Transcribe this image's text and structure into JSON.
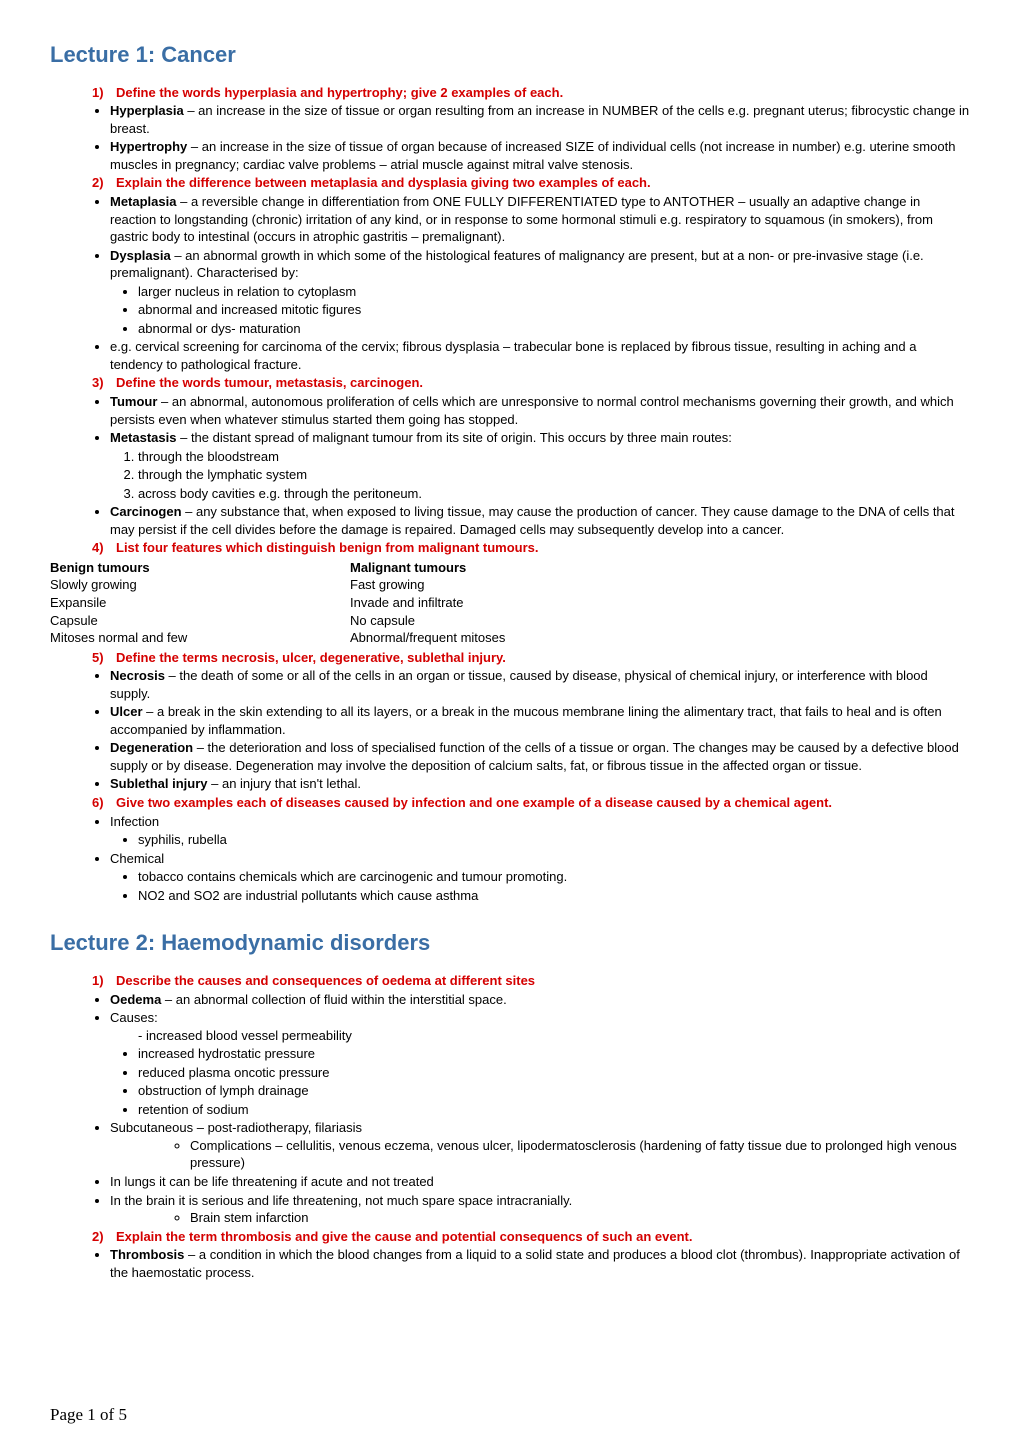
{
  "lecture1": {
    "title": "Lecture 1: Cancer",
    "q1": {
      "num": "1)",
      "text": "Define the words hyperplasia and hypertrophy; give 2 examples of each.",
      "items": [
        {
          "term": "Hyperplasia",
          "body": " – an increase in the size of tissue or organ resulting from an increase in NUMBER of the cells e.g. pregnant uterus; fibrocystic change in breast."
        },
        {
          "term": "Hypertrophy",
          "body": " – an increase in the size of tissue of organ because of increased SIZE of individual cells (not increase in number) e.g. uterine smooth muscles in pregnancy; cardiac valve problems – atrial muscle against mitral valve stenosis."
        }
      ]
    },
    "q2": {
      "num": "2)",
      "text": "Explain the difference between metaplasia and dysplasia giving two examples of each.",
      "meta": {
        "term": "Metaplasia",
        "body": " – a reversible change in differentiation from ONE FULLY DIFFERENTIATED type to ANTOTHER – usually an adaptive change in reaction to longstanding (chronic) irritation of any kind, or in response to some hormonal stimuli e.g. respiratory to squamous (in smokers), from gastric body to intestinal (occurs in atrophic gastritis – premalignant)."
      },
      "dys": {
        "term": "Dysplasia",
        "body": " – an abnormal growth in which some of the histological features of malignancy are present, but at a non- or pre-invasive stage (i.e. premalignant). Characterised by:"
      },
      "dys_sub": [
        "larger nucleus in relation to cytoplasm",
        "abnormal and increased mitotic figures",
        "abnormal or dys- maturation"
      ],
      "eg": "e.g. cervical screening for carcinoma of the cervix; fibrous dysplasia – trabecular bone is replaced by fibrous tissue, resulting in aching and a tendency to pathological fracture."
    },
    "q3": {
      "num": "3)",
      "text": "Define the words tumour, metastasis, carcinogen.",
      "tumour": {
        "term": "Tumour",
        "body": " – an abnormal, autonomous proliferation of cells which are unresponsive to normal control mechanisms governing their growth, and which persists even when whatever stimulus started them going has stopped."
      },
      "metast": {
        "term": "Metastasis",
        "body": " – the distant spread of malignant tumour from its site of origin. This occurs by three main routes:"
      },
      "metast_sub": [
        "through the bloodstream",
        "through the lymphatic system",
        "across body cavities e.g. through the peritoneum."
      ],
      "carc": {
        "term": "Carcinogen",
        "body": " – any substance that, when exposed to living tissue, may cause the production of cancer. They cause damage to the DNA of cells that may persist if the cell divides before the damage is repaired. Damaged cells may subsequently develop into a cancer."
      }
    },
    "q4": {
      "num": "4)",
      "text": "List four features which distinguish benign from malignant tumours.",
      "benign_hdr": "Benign tumours",
      "malig_hdr": "Malignant tumours",
      "rows": [
        [
          "Slowly growing",
          "Fast growing"
        ],
        [
          "Expansile",
          "Invade and infiltrate"
        ],
        [
          "Capsule",
          "No capsule"
        ],
        [
          "Mitoses normal and few",
          "Abnormal/frequent mitoses"
        ]
      ]
    },
    "q5": {
      "num": "5)",
      "text": "Define the terms necrosis, ulcer, degenerative, sublethal injury.",
      "items": [
        {
          "term": "Necrosis",
          "body": " – the death of some or all of the cells in an organ or tissue, caused by disease, physical of chemical injury, or interference with blood supply."
        },
        {
          "term": "Ulcer",
          "body": " – a break in the skin extending to all its layers, or a break in the mucous membrane lining the alimentary tract, that fails to heal and is often accompanied by inflammation."
        },
        {
          "term": "Degeneration",
          "body": " – the deterioration and loss of specialised function of the cells of a tissue or organ. The changes may be caused by a defective blood supply or by disease. Degeneration may involve the deposition of calcium salts, fat, or fibrous tissue in the affected organ or tissue."
        },
        {
          "term": "Sublethal injury",
          "body": " – an injury that isn't lethal."
        }
      ]
    },
    "q6": {
      "num": "6)",
      "text": "Give two examples each of diseases caused by infection and one example of a disease caused by a chemical agent.",
      "infection_label": "Infection",
      "infection_sub": [
        "syphilis, rubella"
      ],
      "chemical_label": "Chemical",
      "chemical_sub": [
        "tobacco contains chemicals which are carcinogenic and tumour promoting.",
        "NO2 and SO2 are industrial pollutants which cause asthma"
      ]
    }
  },
  "lecture2": {
    "title": "Lecture 2: Haemodynamic disorders",
    "q1": {
      "num": "1)",
      "text": "Describe the causes and consequences of oedema at different sites",
      "oedema": {
        "term": "Oedema",
        "body": " – an abnormal collection of fluid within the interstitial space."
      },
      "causes_label": "Causes:",
      "causes_dash": "increased blood vessel permeability",
      "causes_rest": [
        "increased hydrostatic pressure",
        "reduced plasma oncotic pressure",
        "obstruction of lymph drainage",
        "retention of sodium"
      ],
      "subcut": "Subcutaneous – post-radiotherapy, filariasis",
      "subcut_comp": "Complications – cellulitis, venous eczema, venous ulcer, lipodermatosclerosis (hardening of fatty tissue due to prolonged high venous pressure)",
      "lungs": "In lungs it can be life threatening if acute and not treated",
      "brain": "In the brain it is serious and life threatening, not much spare space intracranially.",
      "brain_sub": "Brain stem infarction"
    },
    "q2": {
      "num": "2)",
      "text": "Explain the term thrombosis and give the cause and potential consequencs of such an event.",
      "throm": {
        "term": "Thrombosis",
        "body": " – a condition in which the blood changes from a liquid to a solid state and produces a blood clot (thrombus). Inappropriate activation of the haemostatic process."
      }
    }
  },
  "footer": "Page 1 of 5"
}
